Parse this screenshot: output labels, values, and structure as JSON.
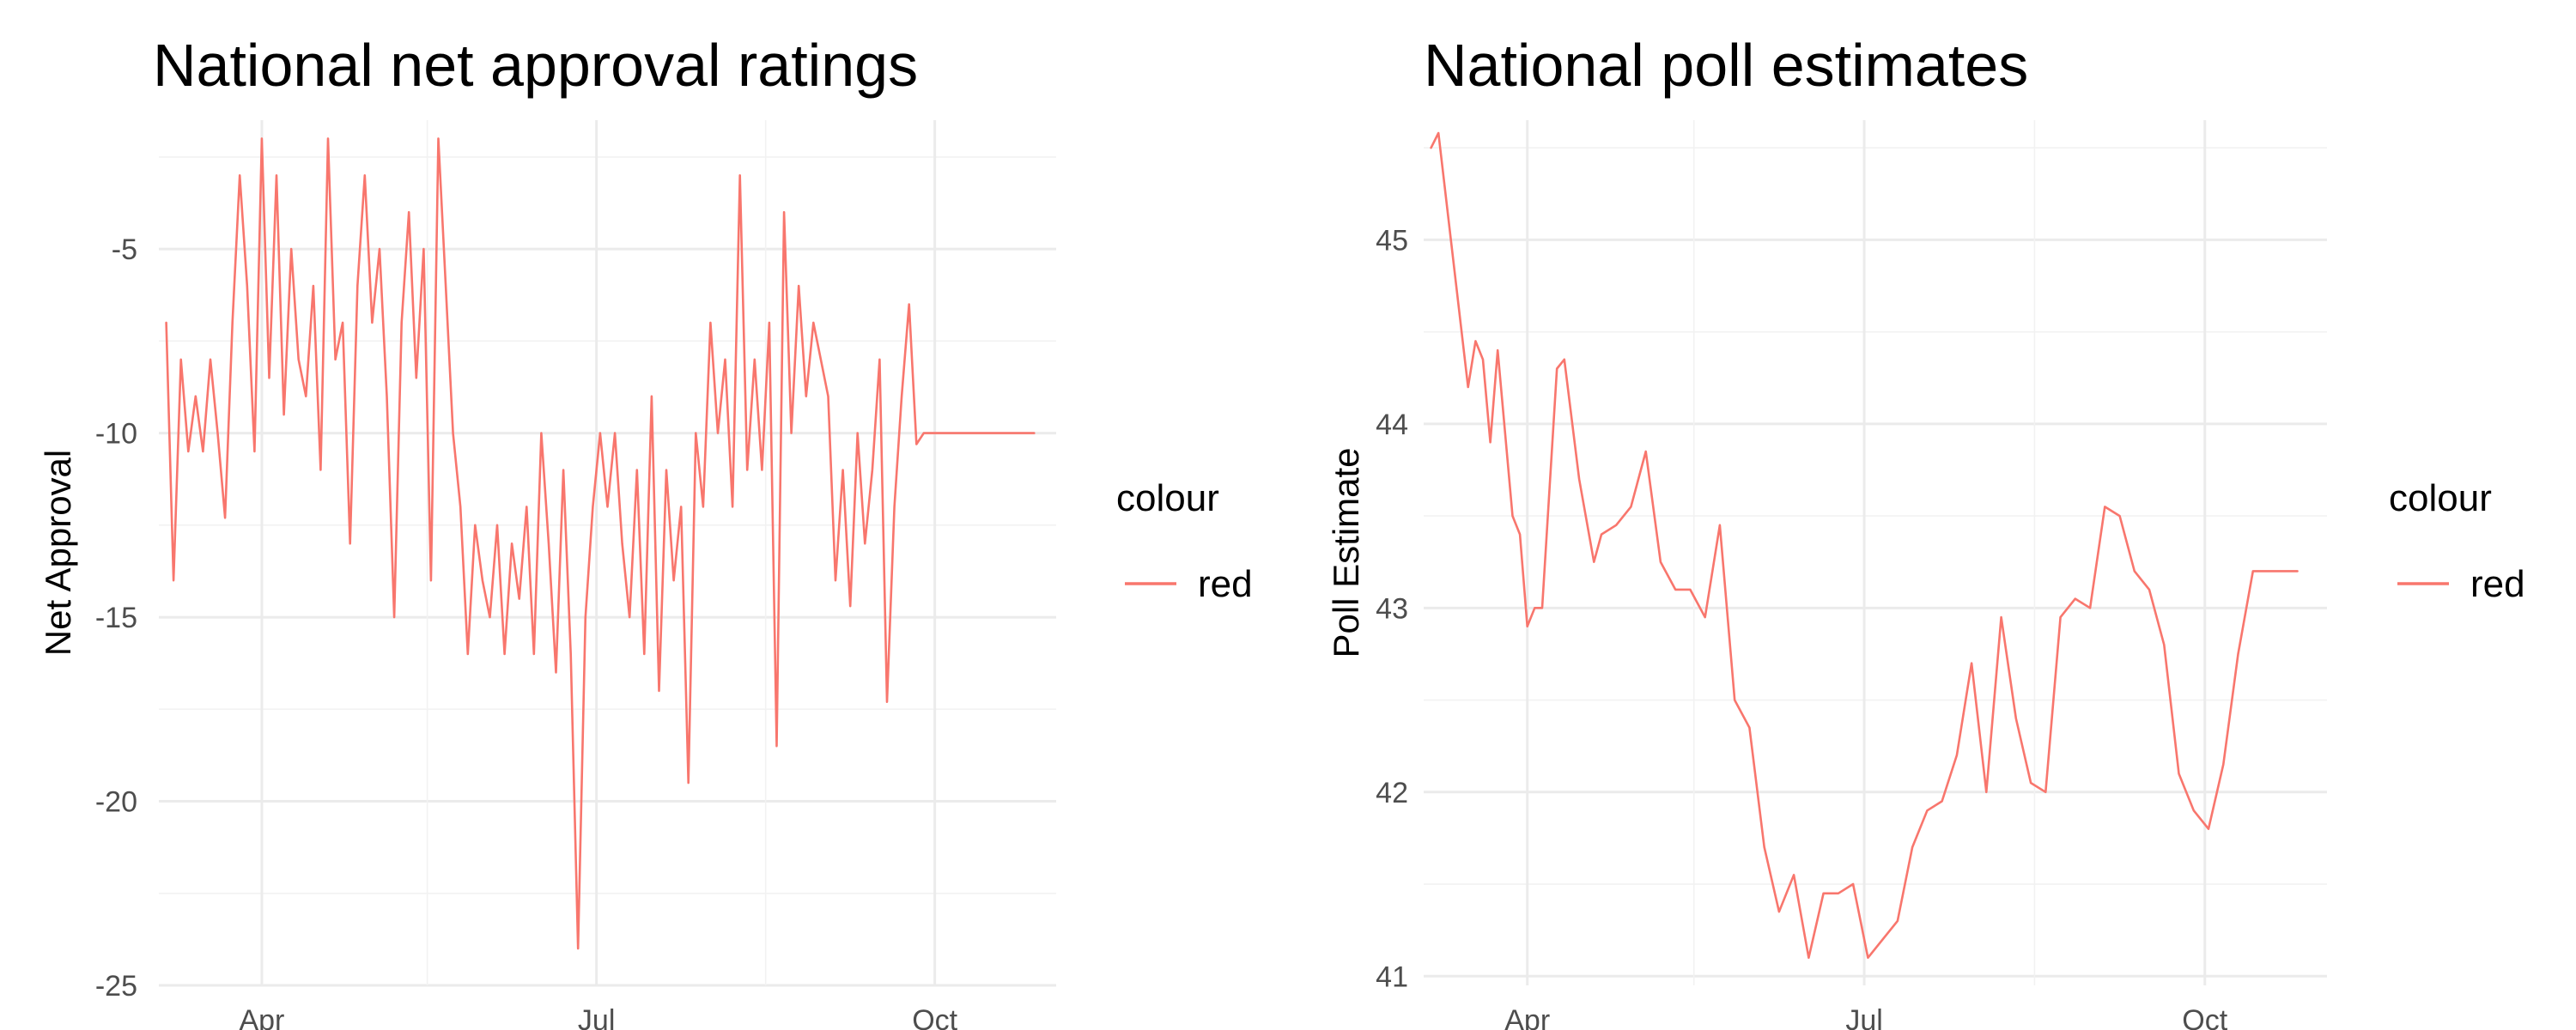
{
  "colors": {
    "series": "#f8766d",
    "gridMajor": "#ebebeb",
    "gridMinor": "#f2f2f2",
    "tickText": "#4d4d4d"
  },
  "chart_data": [
    {
      "type": "line",
      "title": "National net approval ratings",
      "xlabel": "",
      "ylabel": "Net Approval",
      "x_ticks": [
        "Apr",
        "Jul",
        "Oct"
      ],
      "y_ticks": [
        "-5",
        "-10",
        "-15",
        "-20",
        "-25"
      ],
      "ylim": [
        -25,
        -1.5
      ],
      "xlim": [
        "2019-03-04",
        "2019-11-03"
      ],
      "grid": true,
      "legend": {
        "title": "colour",
        "entries": [
          "red"
        ],
        "position": "right"
      },
      "series": [
        {
          "name": "red",
          "color": "#f8766d",
          "x": [
            "2019-03-06",
            "2019-03-08",
            "2019-03-10",
            "2019-03-12",
            "2019-03-14",
            "2019-03-16",
            "2019-03-18",
            "2019-03-20",
            "2019-03-22",
            "2019-03-24",
            "2019-03-26",
            "2019-03-28",
            "2019-03-30",
            "2019-04-01",
            "2019-04-03",
            "2019-04-05",
            "2019-04-07",
            "2019-04-09",
            "2019-04-11",
            "2019-04-13",
            "2019-04-15",
            "2019-04-17",
            "2019-04-19",
            "2019-04-21",
            "2019-04-23",
            "2019-04-25",
            "2019-04-27",
            "2019-04-29",
            "2019-05-01",
            "2019-05-03",
            "2019-05-05",
            "2019-05-07",
            "2019-05-09",
            "2019-05-11",
            "2019-05-13",
            "2019-05-15",
            "2019-05-17",
            "2019-05-19",
            "2019-05-21",
            "2019-05-23",
            "2019-05-25",
            "2019-05-27",
            "2019-05-29",
            "2019-05-31",
            "2019-06-02",
            "2019-06-04",
            "2019-06-06",
            "2019-06-08",
            "2019-06-10",
            "2019-06-12",
            "2019-06-14",
            "2019-06-16",
            "2019-06-18",
            "2019-06-20",
            "2019-06-22",
            "2019-06-24",
            "2019-06-26",
            "2019-06-28",
            "2019-06-30",
            "2019-07-02",
            "2019-07-04",
            "2019-07-06",
            "2019-07-08",
            "2019-07-10",
            "2019-07-12",
            "2019-07-14",
            "2019-07-16",
            "2019-07-18",
            "2019-07-20",
            "2019-07-22",
            "2019-07-24",
            "2019-07-26",
            "2019-07-28",
            "2019-07-30",
            "2019-08-01",
            "2019-08-03",
            "2019-08-05",
            "2019-08-07",
            "2019-08-09",
            "2019-08-11",
            "2019-08-13",
            "2019-08-15",
            "2019-08-17",
            "2019-08-19",
            "2019-08-21",
            "2019-08-23",
            "2019-08-25",
            "2019-08-27",
            "2019-08-29",
            "2019-08-31",
            "2019-09-02",
            "2019-09-04",
            "2019-09-06",
            "2019-09-08",
            "2019-09-10",
            "2019-09-12",
            "2019-09-14",
            "2019-09-16",
            "2019-09-18",
            "2019-09-20",
            "2019-09-22",
            "2019-09-24",
            "2019-09-26",
            "2019-09-28",
            "2019-09-30",
            "2019-10-02",
            "2019-10-04",
            "2019-10-06",
            "2019-10-08",
            "2019-10-10",
            "2019-10-12",
            "2019-10-14",
            "2019-10-16",
            "2019-10-18",
            "2019-10-20",
            "2019-10-22",
            "2019-10-24",
            "2019-10-26",
            "2019-10-28"
          ],
          "y": [
            -7,
            -14,
            -8,
            -10.5,
            -9,
            -10.5,
            -8,
            -10,
            -12.3,
            -7,
            -3,
            -6,
            -10.5,
            -2,
            -8.5,
            -3,
            -9.5,
            -5,
            -8,
            -9,
            -6,
            -11,
            -2,
            -8,
            -7,
            -13,
            -6,
            -3,
            -7,
            -5,
            -9,
            -15,
            -7,
            -4,
            -8.5,
            -5,
            -14,
            -2,
            -6,
            -10,
            -12,
            -16,
            -12.5,
            -14,
            -15,
            -12.5,
            -16,
            -13,
            -14.5,
            -12,
            -16,
            -10,
            -13,
            -16.5,
            -11,
            -16,
            -24,
            -15,
            -12,
            -10,
            -12,
            -10,
            -13,
            -15,
            -11,
            -16,
            -9,
            -17,
            -11,
            -14,
            -12,
            -19.5,
            -10,
            -12,
            -7,
            -10,
            -8,
            -12,
            -3,
            -11,
            -8,
            -11,
            -7,
            -18.5,
            -4,
            -10,
            -6,
            -9,
            -7,
            -8,
            -9,
            -14,
            -11,
            -14.7,
            -10,
            -13,
            -11,
            -8,
            -17.3,
            -12,
            -9,
            -6.5,
            -10.3,
            -10,
            -10,
            -10,
            -10,
            -10,
            -10,
            -10,
            -10,
            -10,
            -10,
            -10,
            -10,
            -10,
            -10,
            -10,
            -10
          ]
        }
      ]
    },
    {
      "type": "line",
      "title": "National poll estimates",
      "xlabel": "",
      "ylabel": "Poll Estimate",
      "x_ticks": [
        "Apr",
        "Jul",
        "Oct"
      ],
      "y_ticks": [
        "45",
        "44",
        "43",
        "42",
        "41"
      ],
      "ylim": [
        40.95,
        45.65
      ],
      "xlim": [
        "2019-03-04",
        "2019-11-03"
      ],
      "grid": true,
      "legend": {
        "title": "colour",
        "entries": [
          "red"
        ],
        "position": "right"
      },
      "series": [
        {
          "name": "red",
          "color": "#f8766d",
          "x": [
            "2019-03-06",
            "2019-03-08",
            "2019-03-16",
            "2019-03-18",
            "2019-03-20",
            "2019-03-22",
            "2019-03-24",
            "2019-03-28",
            "2019-03-30",
            "2019-04-01",
            "2019-04-03",
            "2019-04-05",
            "2019-04-09",
            "2019-04-11",
            "2019-04-15",
            "2019-04-19",
            "2019-04-21",
            "2019-04-25",
            "2019-04-29",
            "2019-05-03",
            "2019-05-07",
            "2019-05-11",
            "2019-05-15",
            "2019-05-19",
            "2019-05-23",
            "2019-05-27",
            "2019-05-31",
            "2019-06-04",
            "2019-06-08",
            "2019-06-12",
            "2019-06-16",
            "2019-06-20",
            "2019-06-24",
            "2019-06-28",
            "2019-07-02",
            "2019-07-06",
            "2019-07-10",
            "2019-07-14",
            "2019-07-18",
            "2019-07-22",
            "2019-07-26",
            "2019-07-30",
            "2019-08-03",
            "2019-08-07",
            "2019-08-11",
            "2019-08-15",
            "2019-08-19",
            "2019-08-23",
            "2019-08-27",
            "2019-08-31",
            "2019-09-04",
            "2019-09-08",
            "2019-09-12",
            "2019-09-16",
            "2019-09-20",
            "2019-09-24",
            "2019-09-28",
            "2019-10-02",
            "2019-10-06",
            "2019-10-10",
            "2019-10-14",
            "2019-10-18",
            "2019-10-22",
            "2019-10-26"
          ],
          "y": [
            45.5,
            45.58,
            44.2,
            44.45,
            44.35,
            43.9,
            44.4,
            43.5,
            43.4,
            42.9,
            43.0,
            43.0,
            44.3,
            44.35,
            43.7,
            43.25,
            43.4,
            43.45,
            43.55,
            43.85,
            43.25,
            43.1,
            43.1,
            42.95,
            43.45,
            42.5,
            42.35,
            41.7,
            41.35,
            41.55,
            41.1,
            41.45,
            41.45,
            41.5,
            41.1,
            41.2,
            41.3,
            41.7,
            41.9,
            41.95,
            42.2,
            42.7,
            42.0,
            42.95,
            42.4,
            42.05,
            42.0,
            42.95,
            43.05,
            43.0,
            43.55,
            43.5,
            43.2,
            43.1,
            42.8,
            42.1,
            41.9,
            41.8,
            42.15,
            42.75,
            43.2,
            43.2,
            43.2,
            43.2
          ]
        }
      ]
    }
  ]
}
